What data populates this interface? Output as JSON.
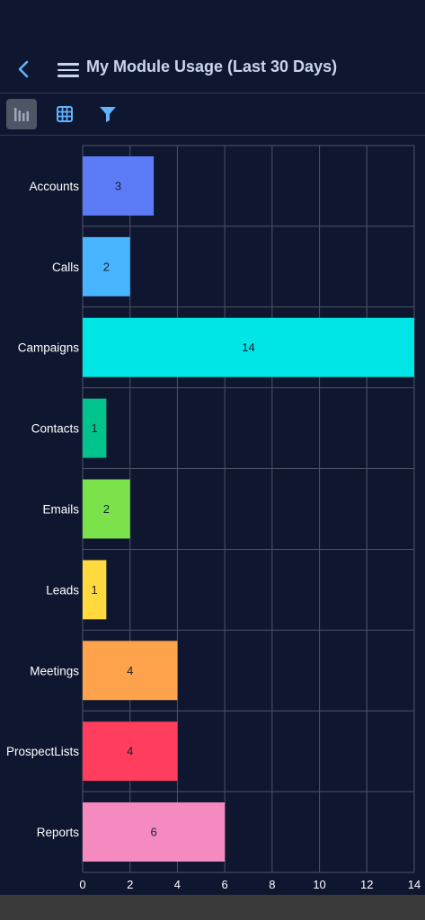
{
  "header": {
    "title": "My Module Usage (Last 30 Days)",
    "back_icon": "chevron-left-icon",
    "menu_icon": "hamburger-menu-icon"
  },
  "toolbar": {
    "tools": [
      {
        "icon": "bar-chart-icon",
        "active": true
      },
      {
        "icon": "grid-table-icon",
        "active": false
      },
      {
        "icon": "filter-icon",
        "active": false
      }
    ]
  },
  "colors": {
    "background": "#0f1730",
    "grid": "#4b5568",
    "accent": "#5fb3ff"
  },
  "chart_data": {
    "type": "bar",
    "orientation": "horizontal",
    "categories": [
      "Accounts",
      "Calls",
      "Campaigns",
      "Contacts",
      "Emails",
      "Leads",
      "Meetings",
      "ProspectLists",
      "Reports"
    ],
    "values": [
      3,
      2,
      14,
      1,
      2,
      1,
      4,
      4,
      6
    ],
    "colors": [
      "#5b7bf7",
      "#49b4ff",
      "#00e5e5",
      "#00c48c",
      "#7be24b",
      "#ffd93d",
      "#ffa24c",
      "#ff3d5c",
      "#f48abf"
    ],
    "xlim": [
      0,
      14
    ],
    "xticks": [
      0,
      2,
      4,
      6,
      8,
      10,
      12,
      14
    ],
    "grid": true
  }
}
